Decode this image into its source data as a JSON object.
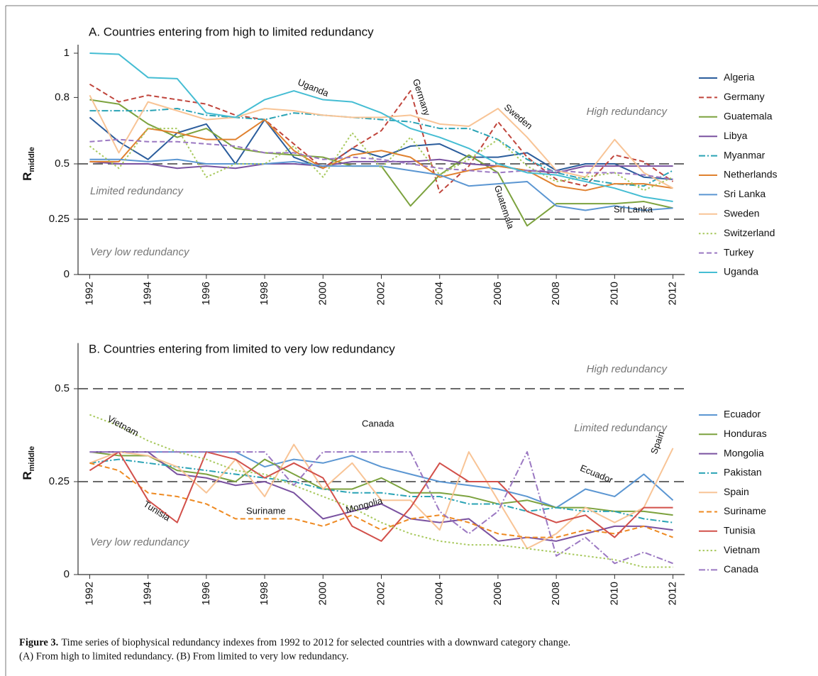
{
  "chart_data": [
    {
      "type": "line",
      "title": "A. Countries entering from high to limited redundancy",
      "y_label": "R",
      "y_label_sub": "middle",
      "x": [
        1992,
        1993,
        1994,
        1995,
        1996,
        1997,
        1998,
        1999,
        2000,
        2001,
        2002,
        2003,
        2004,
        2005,
        2006,
        2007,
        2008,
        2009,
        2010,
        2011,
        2012
      ],
      "xlim": [
        1991.6,
        2012.4
      ],
      "xticks": [
        1992,
        1994,
        1996,
        1998,
        2000,
        2002,
        2004,
        2006,
        2008,
        2010,
        2012
      ],
      "ylim": [
        0,
        1
      ],
      "yticks": [
        0,
        0.25,
        0.5,
        0.8,
        1
      ],
      "reference_lines": [
        0.25,
        0.5
      ],
      "annotations": [
        "High redundancy",
        "Limited redundancy",
        "Very low redundancy",
        "Uganda",
        "Germany",
        "Sweden",
        "Guatemala",
        "Sri Lanka"
      ],
      "series": [
        {
          "name": "Algeria",
          "color": "#2b5d9c",
          "style": "solid",
          "values": [
            0.71,
            0.6,
            0.52,
            0.64,
            0.68,
            0.5,
            0.7,
            0.53,
            0.48,
            0.57,
            0.53,
            0.58,
            0.59,
            0.53,
            0.53,
            0.55,
            0.47,
            0.5,
            0.5,
            0.44,
            0.43
          ]
        },
        {
          "name": "Germany",
          "color": "#c0453c",
          "style": "dashed",
          "values": [
            0.86,
            0.78,
            0.81,
            0.79,
            0.77,
            0.72,
            0.7,
            0.59,
            0.48,
            0.57,
            0.65,
            0.83,
            0.37,
            0.49,
            0.69,
            0.53,
            0.43,
            0.4,
            0.54,
            0.51,
            0.42
          ]
        },
        {
          "name": "Guatemala",
          "color": "#7ca23e",
          "style": "solid",
          "values": [
            0.79,
            0.77,
            0.68,
            0.62,
            0.66,
            0.57,
            0.55,
            0.54,
            0.53,
            0.49,
            0.49,
            0.31,
            0.45,
            0.54,
            0.46,
            0.22,
            0.32,
            0.32,
            0.32,
            0.33,
            0.3
          ]
        },
        {
          "name": "Libya",
          "color": "#7a52a0",
          "style": "solid",
          "values": [
            0.51,
            0.5,
            0.5,
            0.48,
            0.49,
            0.48,
            0.5,
            0.5,
            0.49,
            0.51,
            0.51,
            0.51,
            0.52,
            0.5,
            0.49,
            0.47,
            0.46,
            0.49,
            0.49,
            0.49,
            0.49
          ]
        },
        {
          "name": "Myanmar",
          "color": "#2aa3b5",
          "style": "dashdot",
          "values": [
            0.74,
            0.74,
            0.74,
            0.75,
            0.72,
            0.71,
            0.7,
            0.73,
            0.72,
            0.71,
            0.7,
            0.69,
            0.66,
            0.66,
            0.61,
            0.52,
            0.46,
            0.43,
            0.41,
            0.4,
            0.47
          ]
        },
        {
          "name": "Netherlands",
          "color": "#e0812f",
          "style": "solid",
          "values": [
            0.51,
            0.51,
            0.66,
            0.64,
            0.61,
            0.61,
            0.7,
            0.56,
            0.48,
            0.54,
            0.56,
            0.53,
            0.44,
            0.47,
            0.49,
            0.47,
            0.4,
            0.38,
            0.41,
            0.41,
            0.39
          ]
        },
        {
          "name": "Sri Lanka",
          "color": "#5b96d2",
          "style": "solid",
          "values": [
            0.52,
            0.52,
            0.51,
            0.52,
            0.5,
            0.5,
            0.5,
            0.51,
            0.49,
            0.49,
            0.49,
            0.47,
            0.45,
            0.4,
            0.41,
            0.42,
            0.31,
            0.29,
            0.31,
            0.29,
            0.3
          ]
        },
        {
          "name": "Sweden",
          "color": "#f8c496",
          "style": "solid",
          "values": [
            0.81,
            0.55,
            0.78,
            0.74,
            0.7,
            0.71,
            0.75,
            0.74,
            0.72,
            0.71,
            0.71,
            0.72,
            0.68,
            0.67,
            0.75,
            0.62,
            0.47,
            0.44,
            0.61,
            0.46,
            0.39
          ]
        },
        {
          "name": "Switzerland",
          "color": "#a8c95e",
          "style": "dotted",
          "values": [
            0.58,
            0.48,
            0.66,
            0.66,
            0.44,
            0.5,
            0.5,
            0.58,
            0.44,
            0.64,
            0.48,
            0.62,
            0.45,
            0.52,
            0.61,
            0.49,
            0.42,
            0.44,
            0.46,
            0.38,
            0.44
          ]
        },
        {
          "name": "Turkey",
          "color": "#9b78c2",
          "style": "dashed",
          "values": [
            0.6,
            0.61,
            0.6,
            0.6,
            0.59,
            0.58,
            0.55,
            0.55,
            0.52,
            0.53,
            0.52,
            0.5,
            0.48,
            0.47,
            0.46,
            0.47,
            0.47,
            0.46,
            0.46,
            0.45,
            0.43
          ]
        },
        {
          "name": "Uganda",
          "color": "#45bdd3",
          "style": "solid",
          "values": [
            1.0,
            0.995,
            0.89,
            0.885,
            0.73,
            0.71,
            0.79,
            0.83,
            0.79,
            0.78,
            0.73,
            0.66,
            0.62,
            0.57,
            0.5,
            0.46,
            0.45,
            0.42,
            0.39,
            0.35,
            0.33
          ]
        }
      ]
    },
    {
      "type": "line",
      "title": "B. Countries entering from limited to very low redundancy",
      "y_label": "R",
      "y_label_sub": "middle",
      "x": [
        1992,
        1993,
        1994,
        1995,
        1996,
        1997,
        1998,
        1999,
        2000,
        2001,
        2002,
        2003,
        2004,
        2005,
        2006,
        2007,
        2008,
        2009,
        2010,
        2011,
        2012
      ],
      "xlim": [
        1991.6,
        2012.4
      ],
      "xticks": [
        1992,
        1994,
        1996,
        1998,
        2000,
        2002,
        2004,
        2006,
        2008,
        2010,
        2012
      ],
      "ylim": [
        0,
        0.6
      ],
      "yticks": [
        0,
        0.25,
        0.5
      ],
      "reference_lines": [
        0.25,
        0.5
      ],
      "annotations": [
        "High redundancy",
        "Limited redundancy",
        "Very low redundancy",
        "Vietnam",
        "Canada",
        "Tunisia",
        "Suriname",
        "Mongolia",
        "Ecuador",
        "Spain"
      ],
      "series": [
        {
          "name": "Ecuador",
          "color": "#5b96d2",
          "style": "solid",
          "values": [
            0.33,
            0.33,
            0.33,
            0.33,
            0.33,
            0.33,
            0.29,
            0.31,
            0.3,
            0.32,
            0.29,
            0.27,
            0.25,
            0.24,
            0.23,
            0.21,
            0.18,
            0.23,
            0.21,
            0.27,
            0.2
          ]
        },
        {
          "name": "Honduras",
          "color": "#7ca23e",
          "style": "solid",
          "values": [
            0.33,
            0.32,
            0.32,
            0.28,
            0.27,
            0.25,
            0.31,
            0.27,
            0.23,
            0.23,
            0.26,
            0.22,
            0.22,
            0.21,
            0.19,
            0.2,
            0.18,
            0.18,
            0.17,
            0.17,
            0.16
          ]
        },
        {
          "name": "Mongolia",
          "color": "#7a52a0",
          "style": "solid",
          "values": [
            0.33,
            0.33,
            0.33,
            0.27,
            0.26,
            0.24,
            0.25,
            0.22,
            0.15,
            0.17,
            0.19,
            0.15,
            0.14,
            0.15,
            0.09,
            0.1,
            0.09,
            0.11,
            0.13,
            0.13,
            0.12
          ]
        },
        {
          "name": "Pakistan",
          "color": "#2aa3b5",
          "style": "dashdot",
          "values": [
            0.3,
            0.31,
            0.3,
            0.29,
            0.28,
            0.27,
            0.26,
            0.25,
            0.23,
            0.22,
            0.22,
            0.21,
            0.21,
            0.19,
            0.19,
            0.17,
            0.18,
            0.17,
            0.17,
            0.15,
            0.14
          ]
        },
        {
          "name": "Spain",
          "color": "#f8c496",
          "style": "solid",
          "values": [
            0.3,
            0.33,
            0.32,
            0.29,
            0.22,
            0.31,
            0.21,
            0.35,
            0.23,
            0.3,
            0.2,
            0.2,
            0.12,
            0.33,
            0.2,
            0.07,
            0.11,
            0.18,
            0.14,
            0.18,
            0.34
          ]
        },
        {
          "name": "Suriname",
          "color": "#ee8a22",
          "style": "dashed",
          "values": [
            0.3,
            0.28,
            0.22,
            0.21,
            0.19,
            0.15,
            0.15,
            0.15,
            0.13,
            0.16,
            0.12,
            0.15,
            0.16,
            0.14,
            0.11,
            0.1,
            0.1,
            0.12,
            0.11,
            0.13,
            0.1
          ]
        },
        {
          "name": "Tunisia",
          "color": "#d2504a",
          "style": "solid",
          "values": [
            0.28,
            0.33,
            0.2,
            0.14,
            0.33,
            0.31,
            0.26,
            0.3,
            0.26,
            0.13,
            0.09,
            0.18,
            0.3,
            0.25,
            0.25,
            0.17,
            0.14,
            0.16,
            0.1,
            0.18,
            0.18
          ]
        },
        {
          "name": "Vietnam",
          "color": "#a8c95e",
          "style": "dotted",
          "values": [
            0.43,
            0.4,
            0.36,
            0.33,
            0.31,
            0.28,
            0.27,
            0.24,
            0.21,
            0.18,
            0.14,
            0.11,
            0.09,
            0.08,
            0.08,
            0.07,
            0.06,
            0.05,
            0.04,
            0.02,
            0.02
          ]
        },
        {
          "name": "Canada",
          "color": "#9b78c2",
          "style": "dashdot",
          "values": [
            0.33,
            0.33,
            0.33,
            0.33,
            0.33,
            0.33,
            0.33,
            0.24,
            0.33,
            0.33,
            0.33,
            0.33,
            0.17,
            0.11,
            0.17,
            0.33,
            0.05,
            0.1,
            0.03,
            0.06,
            0.03
          ]
        }
      ]
    }
  ],
  "caption": {
    "label": "Figure 3.",
    "lines": [
      "Time series of biophysical redundancy indexes from 1992 to 2012 for selected countries with a downward category change.",
      "(A) From high to limited redundancy. (B) From limited to very low redundancy."
    ]
  }
}
